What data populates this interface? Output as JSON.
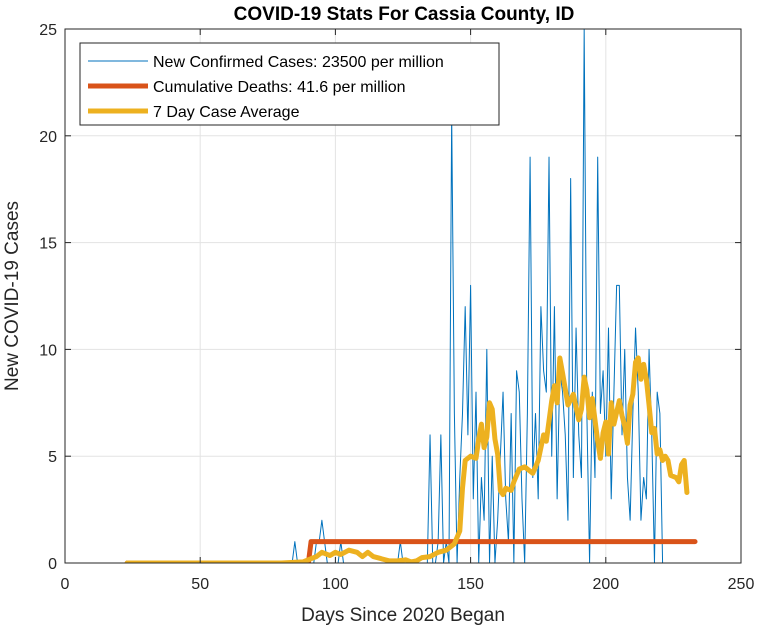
{
  "chart_data": {
    "type": "line",
    "title": "COVID-19 Stats For Cassia County, ID",
    "xlabel": "Days Since 2020 Began",
    "ylabel": "New COVID-19 Cases",
    "xlim": [
      0,
      250
    ],
    "ylim": [
      0,
      25
    ],
    "xticks": [
      0,
      50,
      100,
      150,
      200,
      250
    ],
    "yticks": [
      0,
      5,
      10,
      15,
      20,
      25
    ],
    "grid": true,
    "legend_position": "top-left",
    "series": [
      {
        "name": "New Confirmed Cases: 23500 per million",
        "color": "#0072BD",
        "line_width": "thin",
        "x_start": 23,
        "values": [
          0,
          0,
          0,
          0,
          0,
          0,
          0,
          0,
          0,
          0,
          0,
          0,
          0,
          0,
          0,
          0,
          0,
          0,
          0,
          0,
          0,
          0,
          0,
          0,
          0,
          0,
          0,
          0,
          0,
          0,
          0,
          0,
          0,
          0,
          0,
          0,
          0,
          0,
          0,
          0,
          0,
          0,
          0,
          0,
          0,
          0,
          0,
          0,
          0,
          0,
          0,
          0,
          0,
          0,
          0,
          0,
          0,
          0,
          0,
          0,
          0,
          0,
          1,
          0,
          0,
          0,
          0,
          0,
          0,
          0,
          1,
          1,
          2,
          1,
          0,
          0,
          0,
          0,
          0,
          1,
          0,
          0,
          0,
          0,
          0,
          0,
          0,
          0,
          0,
          0,
          0,
          0,
          0,
          0,
          0,
          0,
          0,
          0,
          0,
          0,
          0,
          1,
          0,
          0,
          0,
          0,
          0,
          0,
          0,
          0,
          0,
          0,
          6,
          0,
          0,
          1,
          6,
          0,
          1,
          0,
          21,
          7,
          0,
          4,
          7,
          12,
          6,
          13,
          3,
          8,
          0,
          4,
          2,
          10,
          0,
          5,
          0,
          2,
          5,
          8,
          3,
          1,
          7,
          0,
          9,
          8,
          3,
          0,
          7,
          19,
          4,
          7,
          3,
          12,
          9,
          8,
          19,
          5,
          12,
          3,
          9,
          8,
          6,
          2,
          18,
          4,
          11,
          6,
          4,
          25,
          7,
          0,
          8,
          4,
          19,
          7,
          9,
          5,
          11,
          3,
          8,
          13,
          13,
          6,
          10,
          4,
          2,
          7,
          11,
          8,
          2,
          4,
          3,
          10,
          6,
          0,
          8,
          7,
          0
        ]
      },
      {
        "name": "Cumulative Deaths: 41.6 per million",
        "color": "#D95319",
        "line_width": "thick",
        "points": [
          [
            23,
            0
          ],
          [
            90,
            0
          ],
          [
            91,
            1
          ],
          [
            233,
            1
          ]
        ]
      },
      {
        "name": "7 Day Case Average",
        "color": "#EDB120",
        "line_width": "thick",
        "points": [
          [
            23,
            0
          ],
          [
            80,
            0
          ],
          [
            88,
            0.05
          ],
          [
            91,
            0.2
          ],
          [
            93,
            0.3
          ],
          [
            95,
            0.5
          ],
          [
            98,
            0.35
          ],
          [
            100,
            0.5
          ],
          [
            102,
            0.4
          ],
          [
            105,
            0.6
          ],
          [
            108,
            0.5
          ],
          [
            110,
            0.3
          ],
          [
            112,
            0.5
          ],
          [
            114,
            0.3
          ],
          [
            117,
            0.2
          ],
          [
            120,
            0.1
          ],
          [
            123,
            0.1
          ],
          [
            126,
            0.15
          ],
          [
            128,
            0.05
          ],
          [
            130,
            0.1
          ],
          [
            132,
            0.25
          ],
          [
            135,
            0.3
          ],
          [
            138,
            0.5
          ],
          [
            141,
            0.6
          ],
          [
            144,
            0.9
          ],
          [
            146,
            1.5
          ],
          [
            147,
            3.5
          ],
          [
            148,
            4.8
          ],
          [
            150,
            5.0
          ],
          [
            152,
            4.9
          ],
          [
            153,
            5.8
          ],
          [
            154,
            6.5
          ],
          [
            155,
            5.4
          ],
          [
            156,
            5.9
          ],
          [
            157,
            7.5
          ],
          [
            158,
            7.2
          ],
          [
            159,
            5.8
          ],
          [
            160,
            5.1
          ],
          [
            161,
            3.4
          ],
          [
            162,
            3.2
          ],
          [
            163,
            3.5
          ],
          [
            165,
            3.4
          ],
          [
            166,
            3.8
          ],
          [
            168,
            4.4
          ],
          [
            170,
            4.5
          ],
          [
            172,
            4.3
          ],
          [
            173,
            4.2
          ],
          [
            175,
            4.8
          ],
          [
            177,
            6.0
          ],
          [
            178,
            5.7
          ],
          [
            180,
            7.6
          ],
          [
            181,
            8.3
          ],
          [
            182,
            7.5
          ],
          [
            183,
            9.6
          ],
          [
            184,
            8.9
          ],
          [
            186,
            7.4
          ],
          [
            188,
            7.9
          ],
          [
            190,
            6.7
          ],
          [
            191,
            7.2
          ],
          [
            192,
            8.7
          ],
          [
            193,
            8.1
          ],
          [
            194,
            6.8
          ],
          [
            195,
            7.7
          ],
          [
            197,
            5.7
          ],
          [
            198,
            4.9
          ],
          [
            199,
            6.1
          ],
          [
            200,
            6.6
          ],
          [
            201,
            5.1
          ],
          [
            202,
            7.5
          ],
          [
            203,
            6.5
          ],
          [
            205,
            7.6
          ],
          [
            206,
            6.9
          ],
          [
            207,
            6.4
          ],
          [
            208,
            5.6
          ],
          [
            209,
            7.4
          ],
          [
            210,
            7.9
          ],
          [
            211,
            9.4
          ],
          [
            212,
            9.6
          ],
          [
            213,
            8.6
          ],
          [
            214,
            9.3
          ],
          [
            215,
            8.6
          ],
          [
            216,
            7.4
          ],
          [
            217,
            6.1
          ],
          [
            218,
            6.3
          ],
          [
            219,
            5.1
          ],
          [
            220,
            5.3
          ],
          [
            221,
            4.8
          ],
          [
            222,
            5.0
          ],
          [
            223,
            4.8
          ],
          [
            224,
            4.1
          ],
          [
            226,
            4.0
          ],
          [
            227,
            3.8
          ],
          [
            228,
            4.6
          ],
          [
            229,
            4.8
          ],
          [
            230,
            3.3
          ]
        ]
      }
    ]
  }
}
